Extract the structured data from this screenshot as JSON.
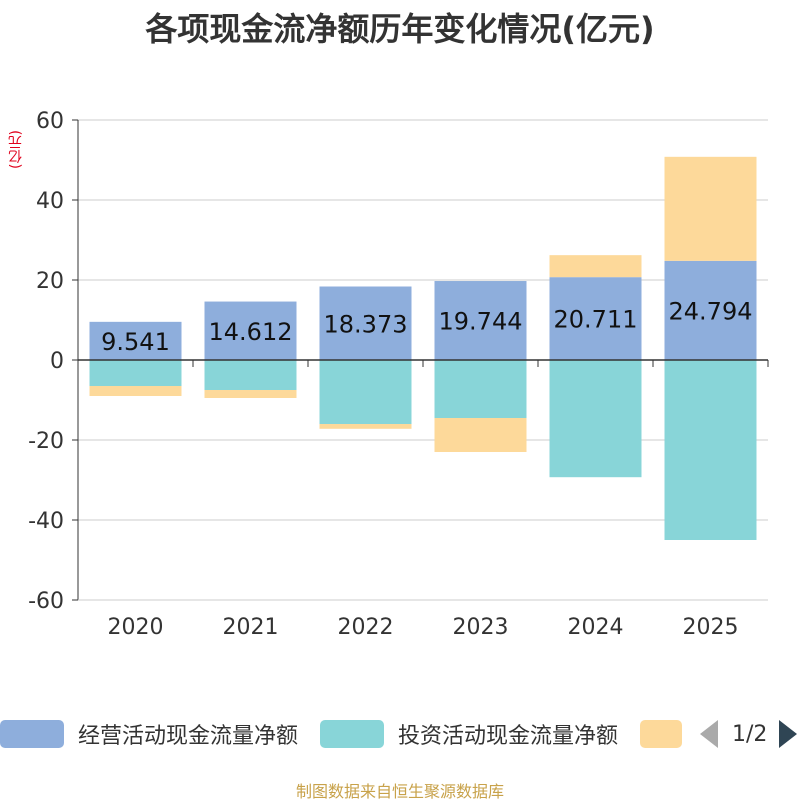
{
  "chart_data": {
    "type": "bar",
    "stacked": true,
    "title": "各项现金流净额历年变化情况(亿元)",
    "ylabel": "(亿元)",
    "categories": [
      "2020",
      "2021",
      "2022",
      "2023",
      "2024",
      "2025"
    ],
    "ylim": [
      -60,
      60
    ],
    "yticks": [
      60,
      40,
      20,
      0,
      -20,
      -40,
      -60
    ],
    "grid": true,
    "series": [
      {
        "name": "经营活动现金流量净额",
        "color": "#8eaedc",
        "values": [
          9.541,
          14.612,
          18.373,
          19.744,
          20.711,
          24.794
        ],
        "labels": [
          "9.541",
          "14.612",
          "18.373",
          "19.744",
          "20.711",
          "24.794"
        ]
      },
      {
        "name": "投资活动现金流量净额",
        "color": "#88d5d8",
        "values": [
          -6.5,
          -7.5,
          -16.0,
          -14.5,
          -29.3,
          -45.0
        ]
      },
      {
        "name": "",
        "color": "#fdd99a",
        "values": [
          -2.5,
          -2.0,
          -1.2,
          -8.5,
          5.5,
          26.0
        ]
      }
    ],
    "legend_position": "bottom"
  },
  "legend": {
    "items": [
      {
        "label": "经营活动现金流量净额",
        "color": "#8eaedc"
      },
      {
        "label": "投资活动现金流量净额",
        "color": "#88d5d8"
      },
      {
        "label": "",
        "color": "#fdd99a"
      }
    ],
    "page_indicator": "1/2"
  },
  "source": "制图数据来自恒生聚源数据库"
}
